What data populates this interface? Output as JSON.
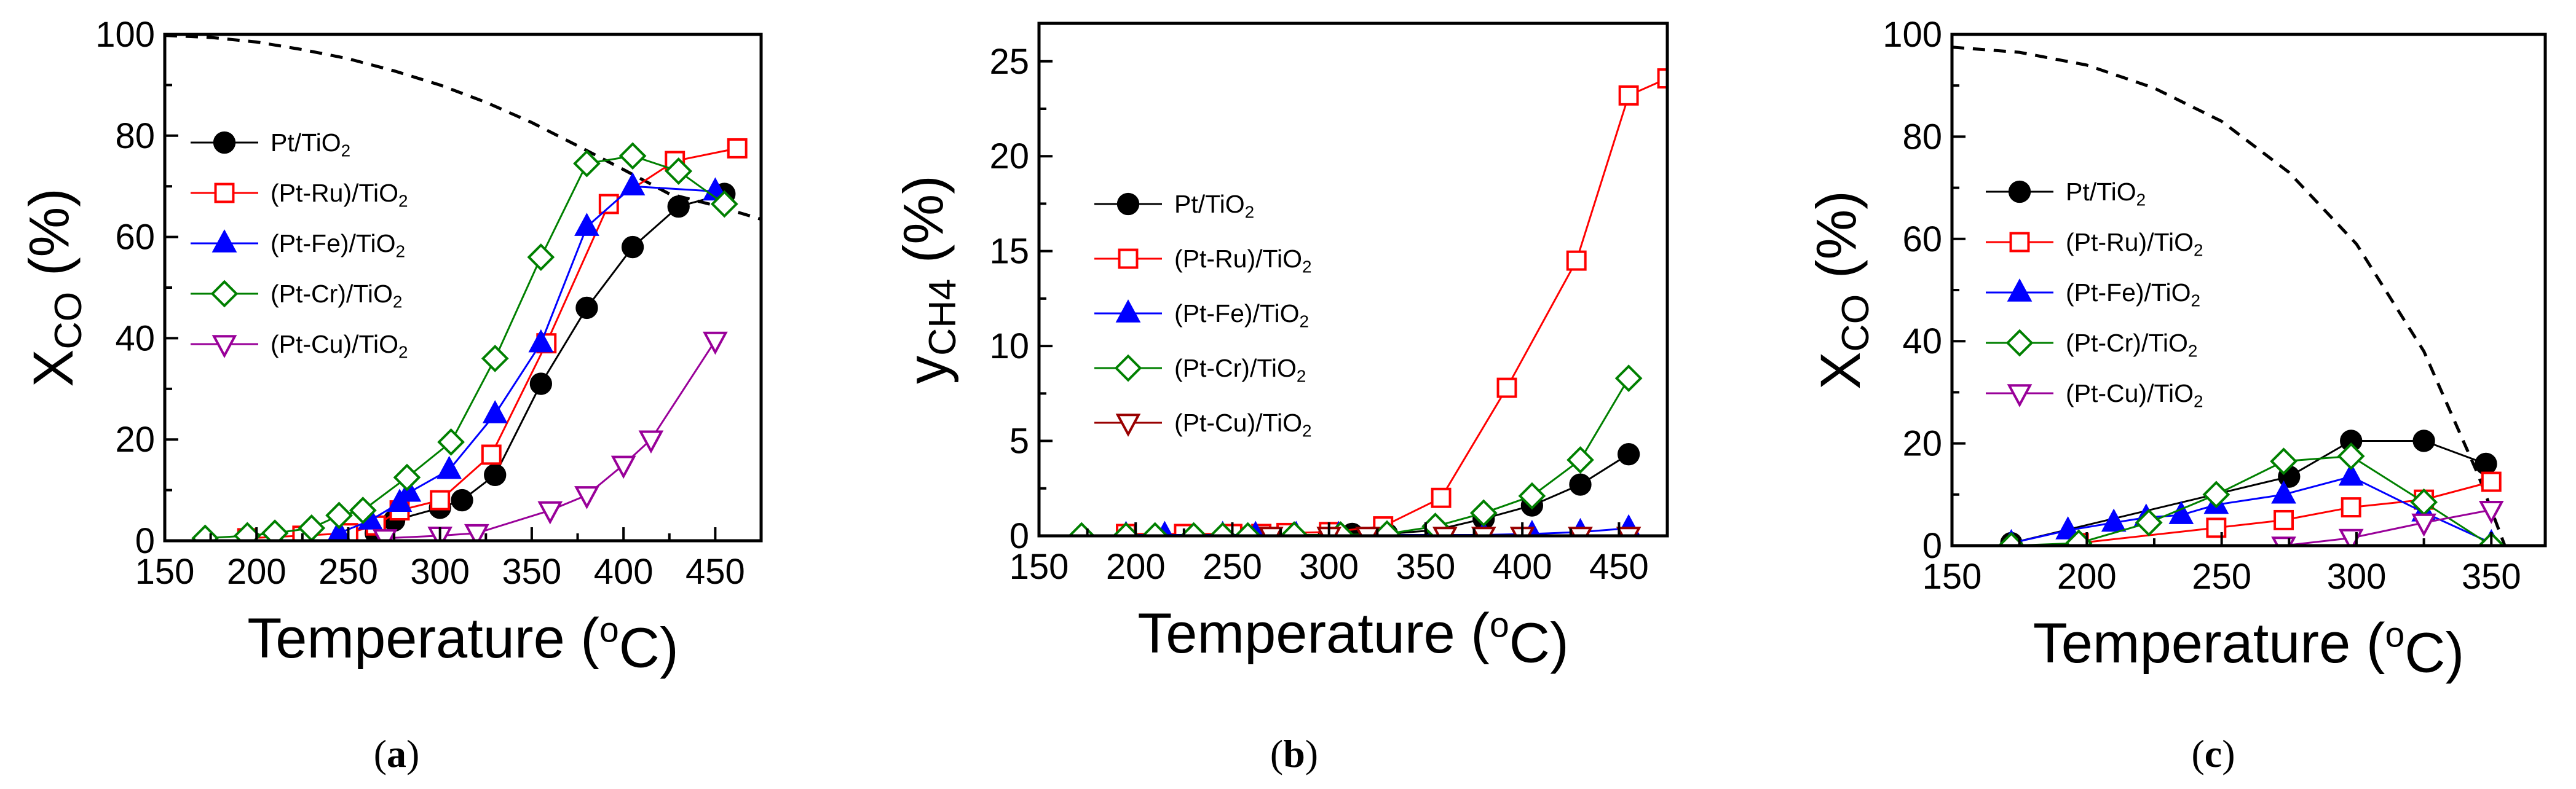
{
  "caption_open": "(",
  "caption_close": ")",
  "chart_data": [
    {
      "type": "line",
      "panel_label": "a",
      "xlabel": "Temperature (°C)",
      "ylabel": "X_CO (%)",
      "xlim": [
        150,
        475
      ],
      "ylim": [
        0,
        100
      ],
      "xticks": [
        150,
        200,
        250,
        300,
        350,
        400,
        450
      ],
      "yticks": [
        0,
        20,
        40,
        60,
        80,
        100
      ],
      "legend_position": "left-middle",
      "equilibrium_curve": [
        [
          150,
          99.8
        ],
        [
          175,
          99.4
        ],
        [
          200,
          98.5
        ],
        [
          225,
          97.0
        ],
        [
          250,
          95.2
        ],
        [
          275,
          92.8
        ],
        [
          300,
          90.0
        ],
        [
          325,
          86.6
        ],
        [
          350,
          82.6
        ],
        [
          375,
          78.0
        ],
        [
          400,
          73.3
        ],
        [
          425,
          68.5
        ],
        [
          450,
          66.2
        ],
        [
          475,
          63.5
        ]
      ],
      "series": [
        {
          "name": "Pt/TiO2",
          "marker": "circle",
          "color": "#000000",
          "points": [
            [
              265,
              1.5
            ],
            [
              275,
              4
            ],
            [
              300,
              6.5
            ],
            [
              312,
              8
            ],
            [
              330,
              13
            ],
            [
              355,
              31
            ],
            [
              380,
              46
            ],
            [
              405,
              58
            ],
            [
              430,
              66
            ],
            [
              455,
              68.5
            ]
          ]
        },
        {
          "name": "(Pt-Ru)/TiO2",
          "marker": "square",
          "color": "#ff0000",
          "points": [
            [
              195,
              0.5
            ],
            [
              225,
              1
            ],
            [
              250,
              1.5
            ],
            [
              265,
              3
            ],
            [
              278,
              6
            ],
            [
              300,
              8
            ],
            [
              328,
              17
            ],
            [
              358,
              39
            ],
            [
              392,
              66.5
            ],
            [
              428,
              75
            ],
            [
              462,
              77.5
            ]
          ]
        },
        {
          "name": "(Pt-Fe)/TiO2",
          "marker": "triangle-up",
          "color": "#0000ff",
          "points": [
            [
              245,
              1.5
            ],
            [
              262,
              4
            ],
            [
              278,
              7.5
            ],
            [
              283,
              9.5
            ],
            [
              305,
              14
            ],
            [
              330,
              25
            ],
            [
              355,
              39
            ],
            [
              380,
              62
            ],
            [
              405,
              70
            ],
            [
              450,
              69
            ]
          ]
        },
        {
          "name": "(Pt-Cr)/TiO2",
          "marker": "diamond",
          "color": "#008000",
          "points": [
            [
              172,
              0.5
            ],
            [
              195,
              1
            ],
            [
              210,
              1.5
            ],
            [
              230,
              2.5
            ],
            [
              245,
              5
            ],
            [
              258,
              6
            ],
            [
              282,
              12.5
            ],
            [
              306,
              19.5
            ],
            [
              330,
              36
            ],
            [
              355,
              56
            ],
            [
              380,
              74.5
            ],
            [
              405,
              76
            ],
            [
              430,
              73
            ],
            [
              455,
              66.5
            ]
          ]
        },
        {
          "name": "(Pt-Cu)/TiO2",
          "marker": "triangle-down",
          "color": "#990099",
          "points": [
            [
              270,
              0.5
            ],
            [
              300,
              1
            ],
            [
              320,
              1.5
            ],
            [
              360,
              6
            ],
            [
              380,
              9
            ],
            [
              400,
              15
            ],
            [
              415,
              20
            ],
            [
              450,
              39.5
            ]
          ]
        }
      ]
    },
    {
      "type": "line",
      "panel_label": "b",
      "xlabel": "Temperature (°C)",
      "ylabel": "y_CH4 (%)",
      "xlim": [
        150,
        475
      ],
      "ylim": [
        0,
        27
      ],
      "xticks": [
        150,
        200,
        250,
        300,
        350,
        400,
        450
      ],
      "yticks": [
        0,
        5,
        10,
        15,
        20,
        25
      ],
      "legend_position": "left-middle",
      "series": [
        {
          "name": "Pt/TiO2",
          "marker": "circle",
          "color": "#000000",
          "points": [
            [
              265,
              0
            ],
            [
              300,
              0.05
            ],
            [
              312,
              0.1
            ],
            [
              330,
              0.1
            ],
            [
              355,
              0.3
            ],
            [
              380,
              0.9
            ],
            [
              405,
              1.6
            ],
            [
              430,
              2.7
            ],
            [
              455,
              4.3
            ]
          ]
        },
        {
          "name": "(Pt-Ru)/TiO2",
          "marker": "square",
          "color": "#ff0000",
          "points": [
            [
              195,
              0.1
            ],
            [
              225,
              0.1
            ],
            [
              250,
              0.1
            ],
            [
              265,
              0.1
            ],
            [
              278,
              0.15
            ],
            [
              300,
              0.2
            ],
            [
              328,
              0.5
            ],
            [
              358,
              2.0
            ],
            [
              392,
              7.8
            ],
            [
              428,
              14.5
            ],
            [
              455,
              23.2
            ],
            [
              475,
              24.1
            ]
          ]
        },
        {
          "name": "(Pt-Fe)/TiO2",
          "marker": "triangle-up",
          "color": "#0000ff",
          "points": [
            [
              195,
              0.05
            ],
            [
              215,
              0.05
            ],
            [
              245,
              0.05
            ],
            [
              262,
              0.05
            ],
            [
              283,
              0.05
            ],
            [
              305,
              0.05
            ],
            [
              330,
              0.05
            ],
            [
              355,
              0.05
            ],
            [
              380,
              0.05
            ],
            [
              405,
              0.1
            ],
            [
              430,
              0.2
            ],
            [
              455,
              0.4
            ]
          ]
        },
        {
          "name": "(Pt-Cr)/TiO2",
          "marker": "diamond",
          "color": "#008000",
          "points": [
            [
              172,
              0
            ],
            [
              195,
              0
            ],
            [
              210,
              0
            ],
            [
              230,
              0
            ],
            [
              245,
              0
            ],
            [
              258,
              0
            ],
            [
              282,
              0.05
            ],
            [
              306,
              0.05
            ],
            [
              330,
              0.1
            ],
            [
              355,
              0.5
            ],
            [
              380,
              1.2
            ],
            [
              405,
              2.1
            ],
            [
              430,
              4.0
            ],
            [
              455,
              8.3
            ]
          ]
        },
        {
          "name": "(Pt-Cu)/TiO2",
          "marker": "triangle-down",
          "color": "#990000",
          "points": [
            [
              270,
              0
            ],
            [
              300,
              0
            ],
            [
              320,
              0
            ],
            [
              360,
              0
            ],
            [
              380,
              0
            ],
            [
              400,
              0
            ],
            [
              430,
              0
            ],
            [
              455,
              0
            ]
          ]
        }
      ]
    },
    {
      "type": "line",
      "panel_label": "c",
      "xlabel": "Temperature (°C)",
      "ylabel": "X_CO (%)",
      "xlim": [
        150,
        370
      ],
      "ylim": [
        0,
        100
      ],
      "xticks": [
        150,
        200,
        250,
        300,
        350
      ],
      "yticks": [
        0,
        20,
        40,
        60,
        80,
        100
      ],
      "legend_position": "left-middle",
      "equilibrium_curve": [
        [
          150,
          97.5
        ],
        [
          175,
          96.5
        ],
        [
          200,
          94
        ],
        [
          225,
          89.5
        ],
        [
          250,
          83
        ],
        [
          275,
          73
        ],
        [
          300,
          59
        ],
        [
          325,
          38
        ],
        [
          345,
          14
        ],
        [
          355,
          0
        ]
      ],
      "series": [
        {
          "name": "Pt/TiO2",
          "marker": "circle",
          "color": "#000000",
          "points": [
            [
              172,
              0.5
            ],
            [
              275,
              13.5
            ],
            [
              298,
              20.5
            ],
            [
              325,
              20.5
            ],
            [
              348,
              16
            ]
          ]
        },
        {
          "name": "(Pt-Ru)/TiO2",
          "marker": "square",
          "color": "#ff0000",
          "points": [
            [
              197,
              0.5
            ],
            [
              248,
              3.5
            ],
            [
              273,
              5
            ],
            [
              298,
              7.5
            ],
            [
              325,
              9
            ],
            [
              350,
              12.5
            ]
          ]
        },
        {
          "name": "(Pt-Fe)/TiO2",
          "marker": "triangle-up",
          "color": "#0000ff",
          "points": [
            [
              172,
              0.5
            ],
            [
              193,
              3
            ],
            [
              210,
              4.5
            ],
            [
              222,
              5.5
            ],
            [
              235,
              6
            ],
            [
              248,
              8
            ],
            [
              273,
              10
            ],
            [
              298,
              13.5
            ],
            [
              325,
              6.5
            ],
            [
              350,
              0.5
            ]
          ]
        },
        {
          "name": "(Pt-Cr)/TiO2",
          "marker": "diamond",
          "color": "#008000",
          "points": [
            [
              172,
              0
            ],
            [
              197,
              0.5
            ],
            [
              223,
              4.5
            ],
            [
              248,
              10
            ],
            [
              273,
              16.5
            ],
            [
              298,
              17.5
            ],
            [
              325,
              8.5
            ],
            [
              350,
              0
            ]
          ]
        },
        {
          "name": "(Pt-Cu)/TiO2",
          "marker": "triangle-down",
          "color": "#990099",
          "points": [
            [
              273,
              0
            ],
            [
              298,
              1.5
            ],
            [
              325,
              4.5
            ],
            [
              350,
              7
            ]
          ]
        }
      ]
    }
  ]
}
